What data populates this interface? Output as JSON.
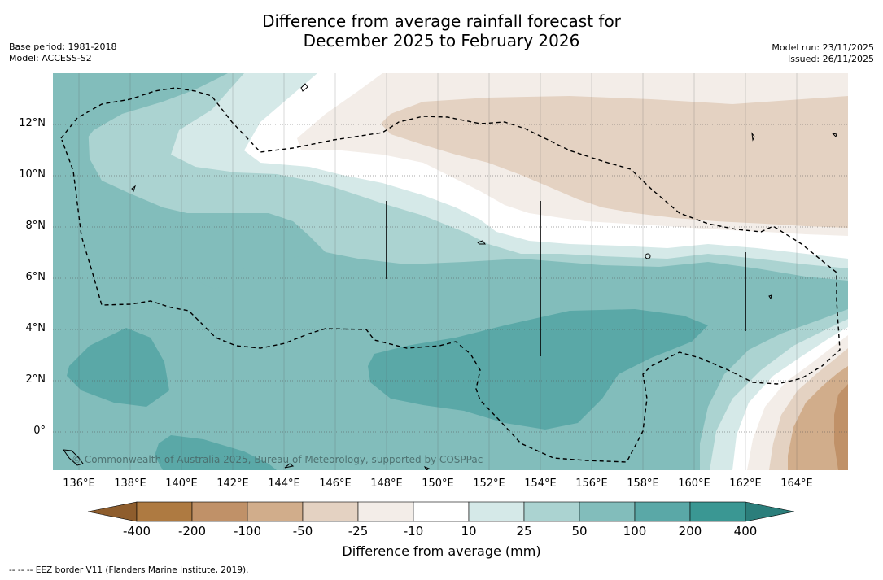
{
  "title": {
    "line1": "Difference from average rainfall forecast for",
    "line2": "December 2025 to February 2026"
  },
  "meta": {
    "base_period": "Base period: 1981-2018",
    "model": "Model: ACCESS-S2",
    "model_run": "Model run: 23/11/2025",
    "issued": "Issued: 26/11/2025"
  },
  "map": {
    "latitude_labels": [
      "12°N",
      "10°N",
      "8°N",
      "6°N",
      "4°N",
      "2°N",
      "0°"
    ],
    "longitude_labels": [
      "136°E",
      "138°E",
      "140°E",
      "142°E",
      "144°E",
      "146°E",
      "148°E",
      "150°E",
      "152°E",
      "154°E",
      "156°E",
      "158°E",
      "160°E",
      "162°E",
      "164°E"
    ],
    "copyright": "© Commonwealth of Australia 2025, Bureau of Meteorology, supported by COSPPac",
    "eez_style": "dashed"
  },
  "colorbar": {
    "title": "Difference from average (mm)",
    "tick_labels": [
      "-400",
      "-200",
      "-100",
      "-50",
      "-25",
      "-10",
      "10",
      "25",
      "50",
      "100",
      "200",
      "400"
    ],
    "colors": [
      "#8e5d2d",
      "#ae7a41",
      "#c09168",
      "#d1ad8b",
      "#e4d2c2",
      "#f3ede8",
      "#ffffff",
      "#d5e9e8",
      "#abd3d1",
      "#82bdbb",
      "#5aa8a7",
      "#3a9793",
      "#2b7e7b"
    ]
  },
  "footer": "--  --  -- EEZ border V11 (Flanders Marine Institute, 2019)."
}
